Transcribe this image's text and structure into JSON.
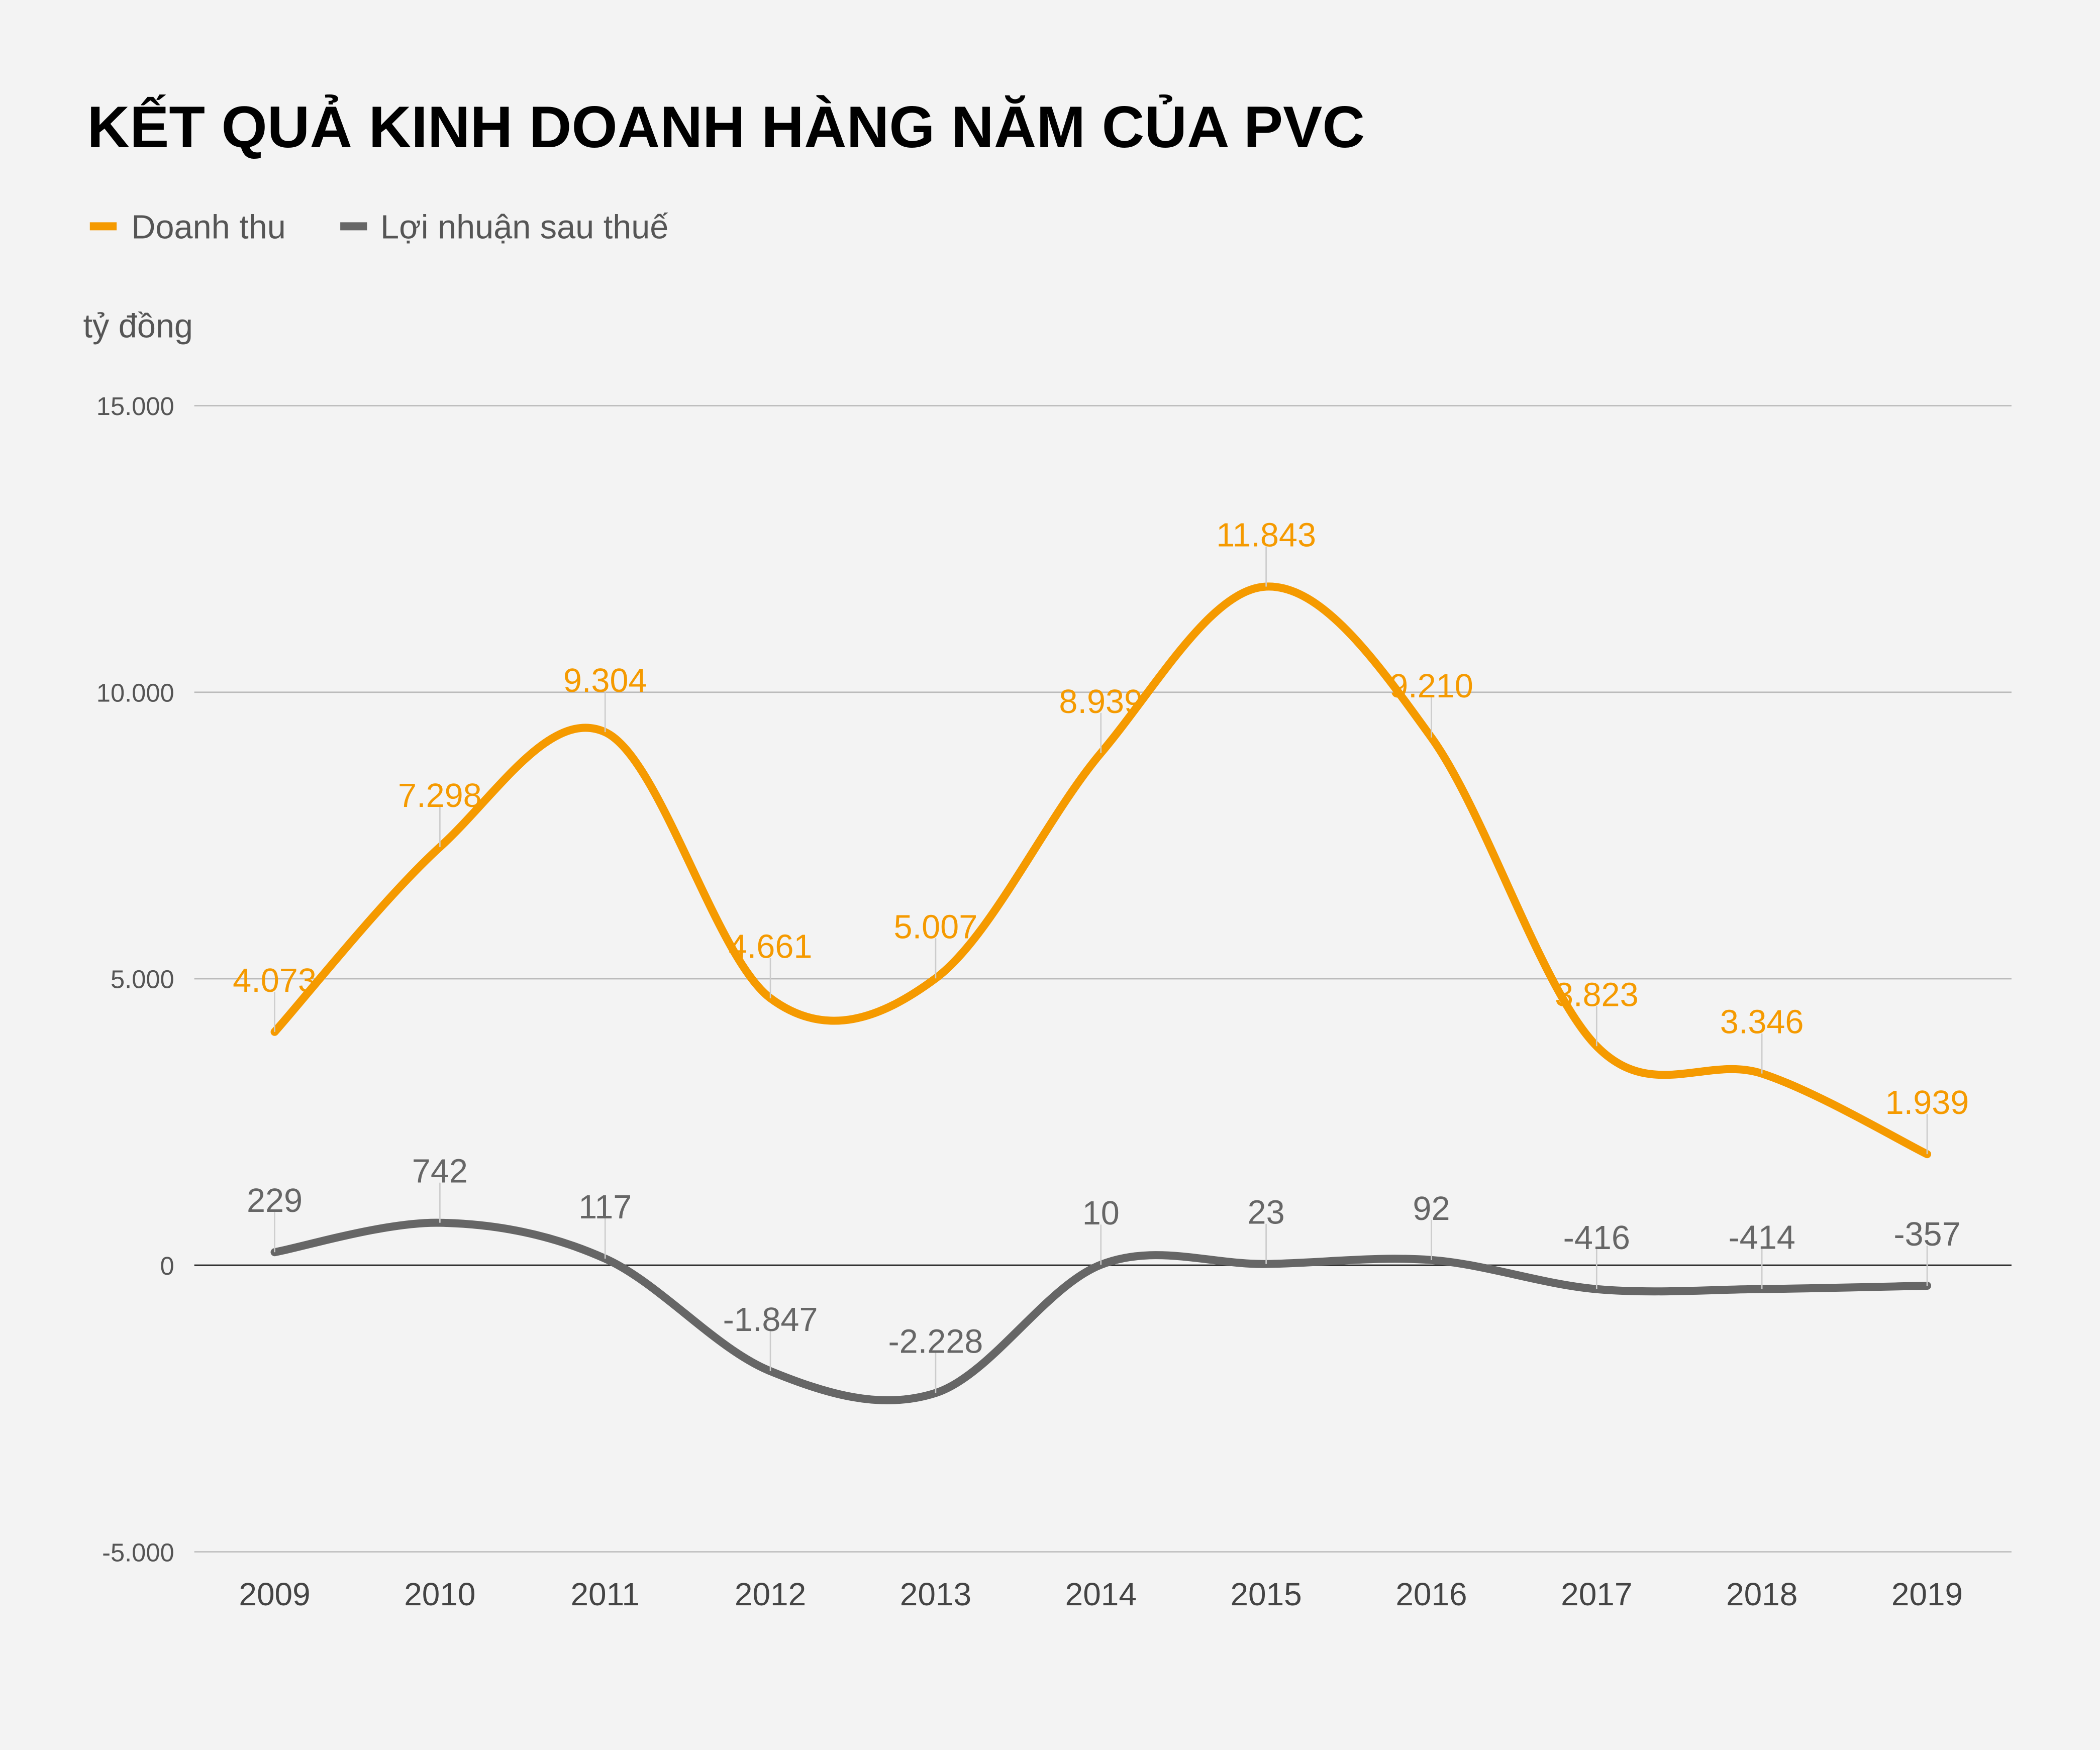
{
  "chart_data": {
    "type": "line",
    "title": "KẾT QUẢ KINH DOANH HÀNG NĂM CỦA PVC",
    "ylabel": "tỷ đồng",
    "xlabel": "",
    "categories": [
      "2009",
      "2010",
      "2011",
      "2012",
      "2013",
      "2014",
      "2015",
      "2016",
      "2017",
      "2018",
      "2019"
    ],
    "ylim": [
      -5000,
      15000
    ],
    "yticks": [
      15000,
      10000,
      5000,
      0,
      -5000
    ],
    "ytick_labels": [
      "15.000",
      "10.000",
      "5.000",
      "0",
      "-5.000"
    ],
    "grid": true,
    "legend_position": "top-left",
    "smooth": true,
    "series": [
      {
        "name": "Doanh thu",
        "color": "#f59a00",
        "values": [
          4073,
          7298,
          9304,
          4661,
          5007,
          8939,
          11843,
          9210,
          3823,
          3346,
          1939
        ],
        "labels": [
          "4.073",
          "7.298",
          "9.304",
          "4.661",
          "5.007",
          "8.939",
          "11.843",
          "9.210",
          "3.823",
          "3.346",
          "1.939"
        ]
      },
      {
        "name": "Lợi nhuận sau thuế",
        "color": "#666666",
        "values": [
          229,
          742,
          117,
          -1847,
          -2228,
          10,
          23,
          92,
          -416,
          -414,
          -357
        ],
        "labels": [
          "229",
          "742",
          "117",
          "-1.847",
          "-2.228",
          "10",
          "23",
          "92",
          "-416",
          "-414",
          "-357"
        ]
      }
    ]
  }
}
